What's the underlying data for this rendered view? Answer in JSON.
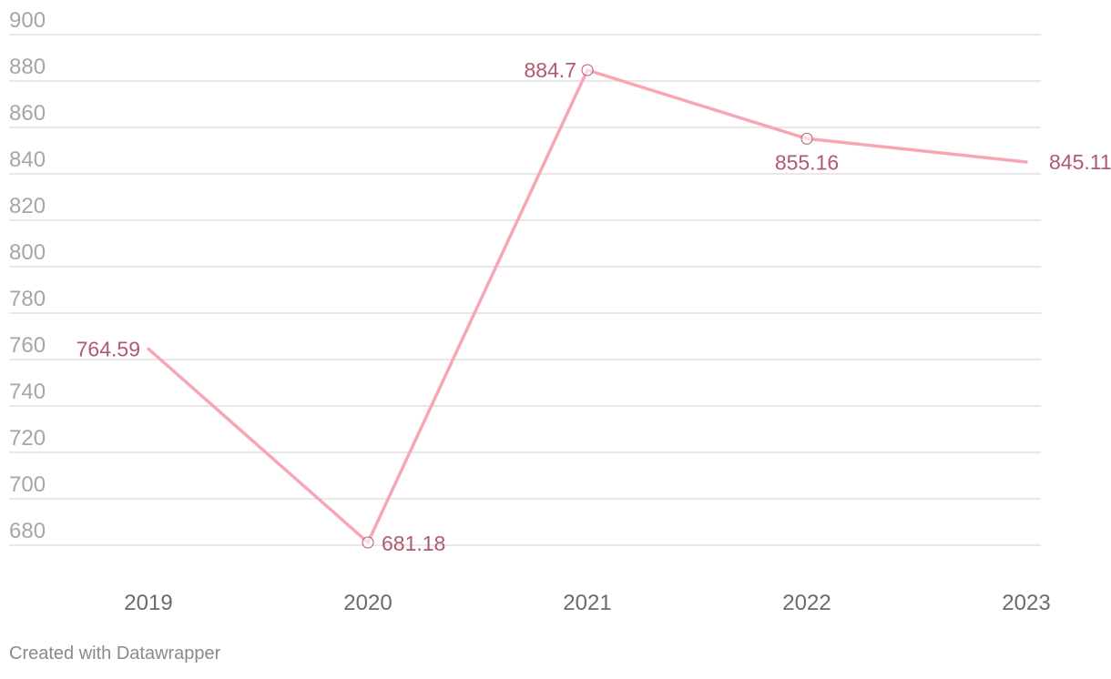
{
  "chart_data": {
    "type": "line",
    "categories": [
      "2019",
      "2020",
      "2021",
      "2022",
      "2023"
    ],
    "values": [
      764.59,
      681.18,
      884.7,
      855.16,
      845.11
    ],
    "data_labels": [
      "764.59",
      "681.18",
      "884.7",
      "855.16",
      "845.11"
    ],
    "yticks": [
      "900",
      "880",
      "860",
      "840",
      "820",
      "800",
      "780",
      "760",
      "740",
      "720",
      "700",
      "680"
    ],
    "ylim": [
      680,
      900
    ],
    "grid": true,
    "line_color": "#f7a6b4",
    "label_color": "#b05a6e"
  },
  "footer": {
    "credit": "Created with Datawrapper"
  }
}
